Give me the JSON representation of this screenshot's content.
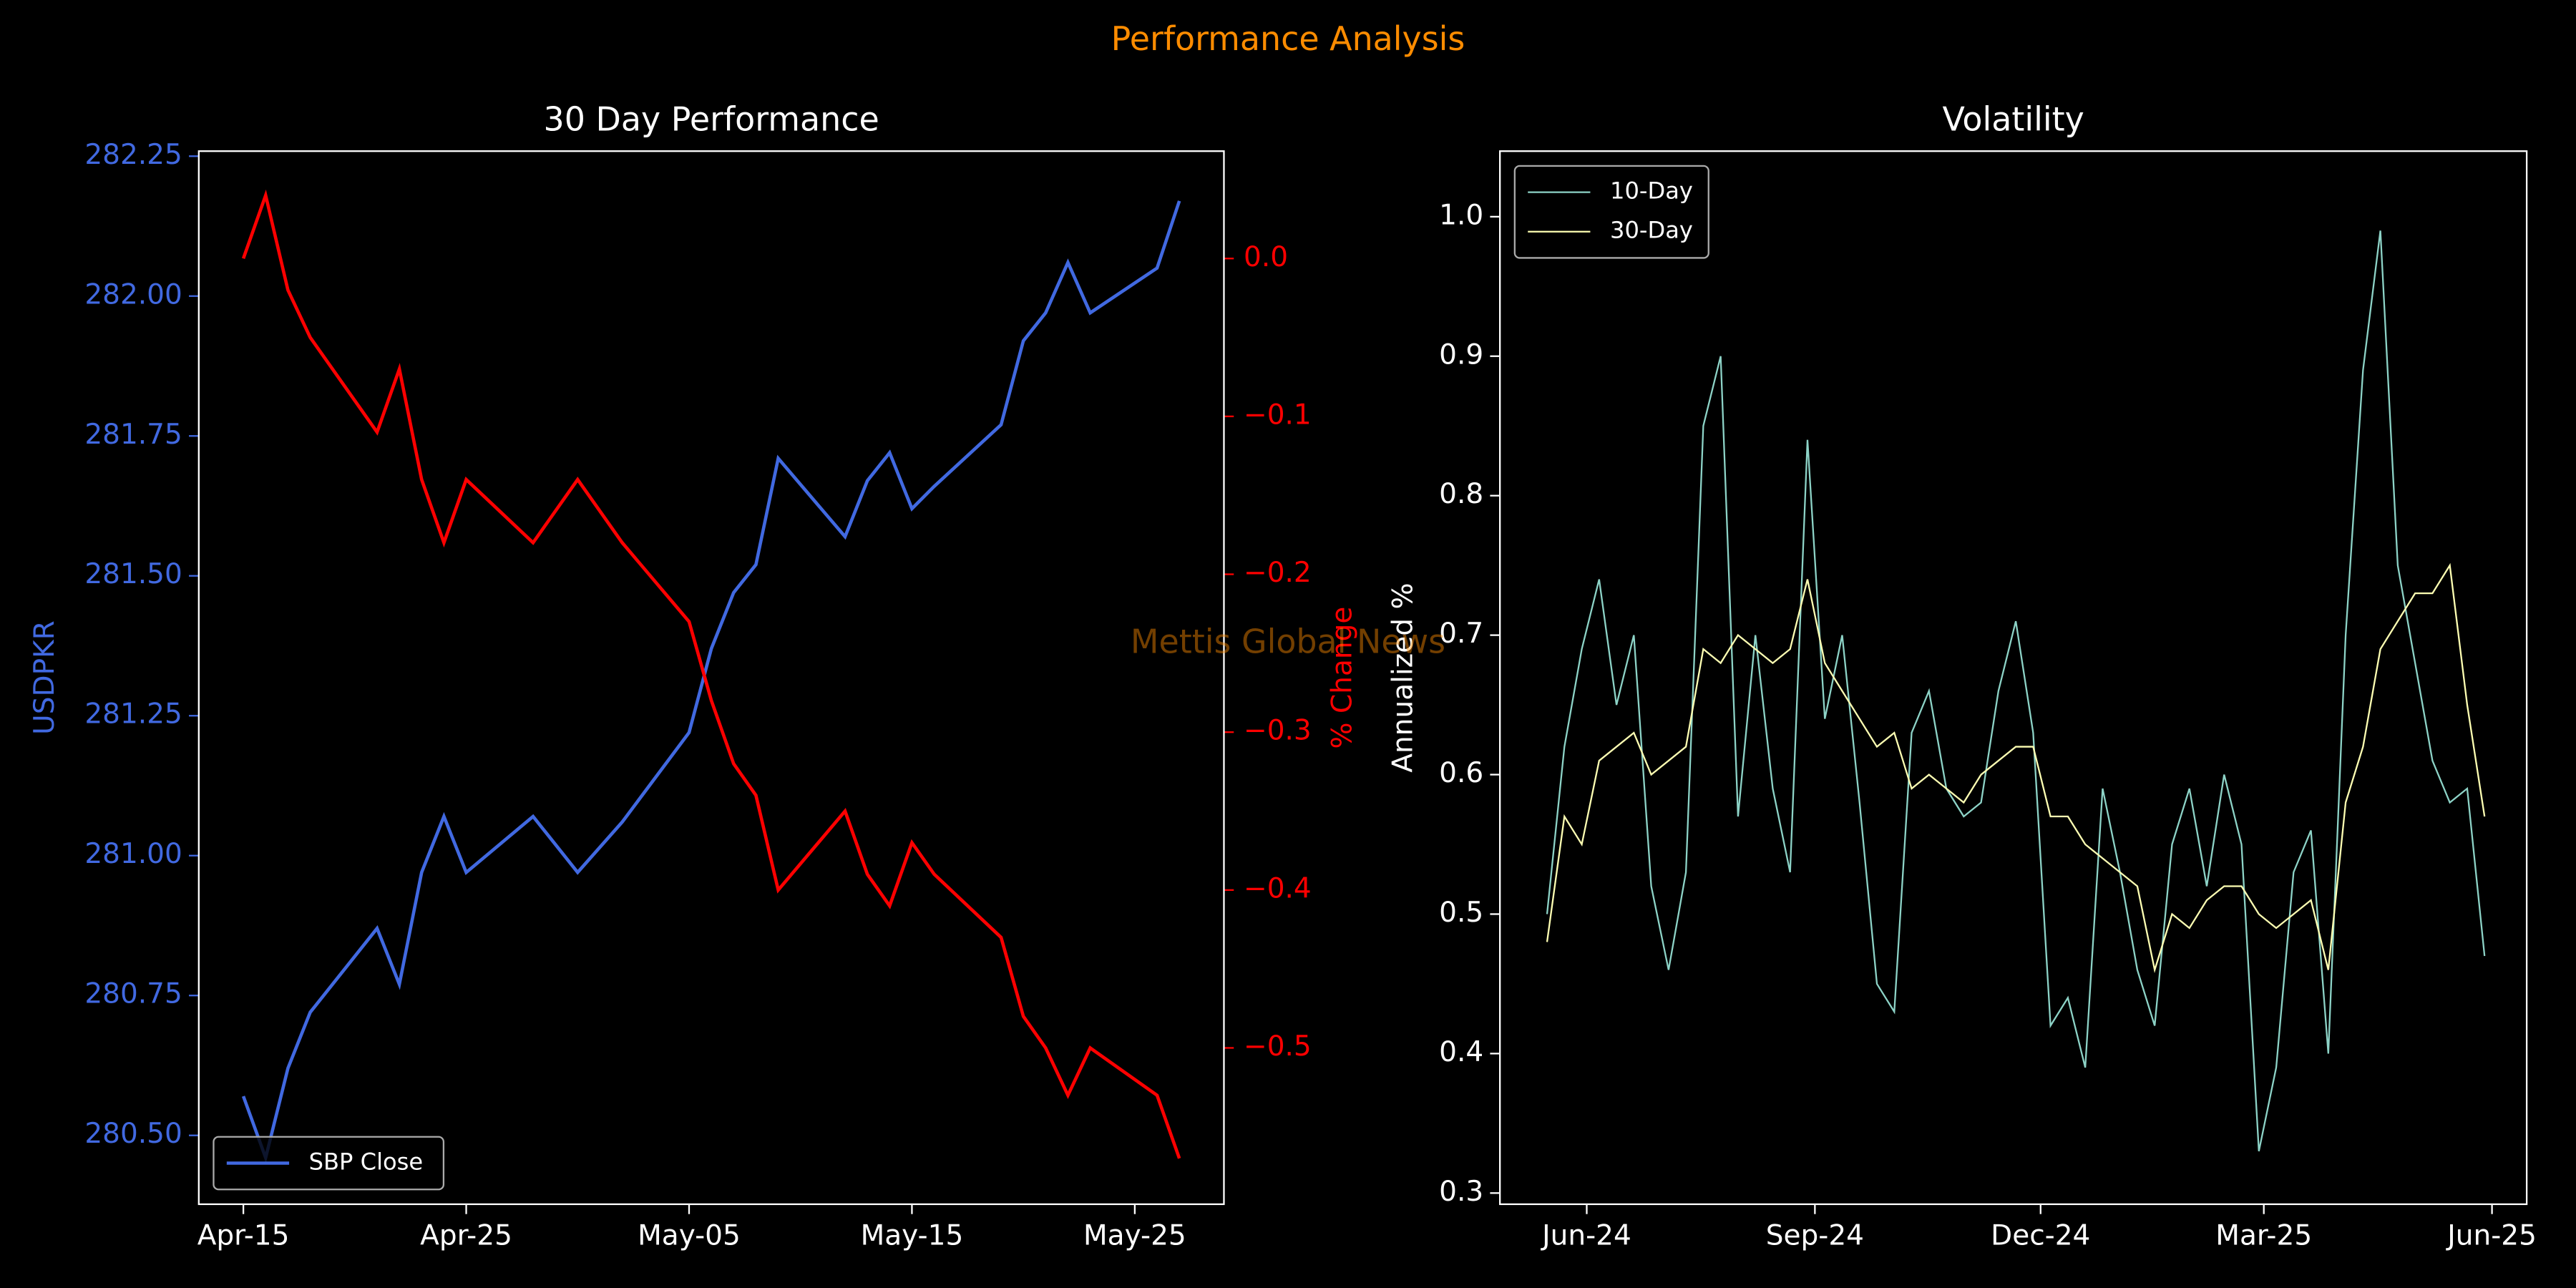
{
  "suptitle": "Performance Analysis",
  "watermark": "Mettis Global News",
  "chart_data": [
    {
      "type": "line",
      "title": "30 Day Performance",
      "ylabel": "USDPKR",
      "y2label": "% Change",
      "x": [
        "04-15",
        "04-16",
        "04-17",
        "04-18",
        "04-21",
        "04-22",
        "04-23",
        "04-24",
        "04-25",
        "04-28",
        "04-30",
        "05-02",
        "05-05",
        "05-06",
        "05-07",
        "05-08",
        "05-09",
        "05-12",
        "05-13",
        "05-14",
        "05-15",
        "05-16",
        "05-19",
        "05-20",
        "05-21",
        "05-22",
        "05-23",
        "05-26",
        "05-27"
      ],
      "series": [
        {
          "name": "SBP Close",
          "color": "#4169e1",
          "values": [
            280.57,
            280.46,
            280.62,
            280.72,
            280.87,
            280.77,
            280.97,
            281.07,
            280.97,
            281.07,
            280.97,
            281.06,
            281.22,
            281.37,
            281.47,
            281.52,
            281.71,
            281.57,
            281.67,
            281.72,
            281.62,
            281.66,
            281.77,
            281.92,
            281.97,
            282.06,
            281.97,
            282.05,
            282.17
          ]
        },
        {
          "color": "#ff0000",
          "axis": "y2",
          "values": [
            0.0,
            0.04,
            -0.02,
            -0.05,
            -0.11,
            -0.07,
            -0.14,
            -0.18,
            -0.14,
            -0.18,
            -0.14,
            -0.18,
            -0.23,
            -0.28,
            -0.32,
            -0.34,
            -0.4,
            -0.35,
            -0.39,
            -0.41,
            -0.37,
            -0.39,
            -0.43,
            -0.48,
            -0.5,
            -0.53,
            -0.5,
            -0.53,
            -0.57
          ]
        }
      ],
      "xlim": [
        "04-13",
        "05-29"
      ],
      "xticks": [
        {
          "value": "04-15",
          "label": "Apr-15"
        },
        {
          "value": "04-25",
          "label": "Apr-25"
        },
        {
          "value": "05-05",
          "label": "May-05"
        },
        {
          "value": "05-15",
          "label": "May-15"
        },
        {
          "value": "05-25",
          "label": "May-25"
        }
      ],
      "ylim": [
        280.377,
        282.259
      ],
      "yticks": [
        {
          "value": 280.5,
          "label": "280.50"
        },
        280.75,
        {
          "value": 281,
          "label": "281.00"
        },
        281.25,
        {
          "value": 281.5,
          "label": "281.50"
        },
        281.75,
        {
          "value": 282,
          "label": "282.00"
        },
        282.25
      ],
      "y2lim": [
        -0.599,
        0.068
      ],
      "y2ticks": [
        {
          "value": -0.5,
          "label": "−0.5"
        },
        {
          "value": -0.4,
          "label": "−0.4"
        },
        {
          "value": -0.3,
          "label": "−0.3"
        },
        {
          "value": -0.2,
          "label": "−0.2"
        },
        {
          "value": -0.1,
          "label": "−0.1"
        },
        {
          "value": 0,
          "label": "0.0"
        }
      ],
      "legend": "lower left"
    },
    {
      "type": "line",
      "title": "Volatility",
      "ylabel": "Annualized %",
      "x": [
        "2024-05-16",
        "2024-05-23",
        "2024-05-30",
        "2024-06-06",
        "2024-06-13",
        "2024-06-20",
        "2024-06-27",
        "2024-07-04",
        "2024-07-11",
        "2024-07-18",
        "2024-07-25",
        "2024-08-01",
        "2024-08-08",
        "2024-08-15",
        "2024-08-22",
        "2024-08-29",
        "2024-09-05",
        "2024-09-12",
        "2024-09-19",
        "2024-09-26",
        "2024-10-03",
        "2024-10-10",
        "2024-10-17",
        "2024-10-24",
        "2024-10-31",
        "2024-11-07",
        "2024-11-14",
        "2024-11-21",
        "2024-11-28",
        "2024-12-05",
        "2024-12-12",
        "2024-12-19",
        "2024-12-26",
        "2025-01-02",
        "2025-01-09",
        "2025-01-16",
        "2025-01-23",
        "2025-01-30",
        "2025-02-06",
        "2025-02-13",
        "2025-02-20",
        "2025-02-27",
        "2025-03-06",
        "2025-03-13",
        "2025-03-20",
        "2025-03-27",
        "2025-04-03",
        "2025-04-10",
        "2025-04-17",
        "2025-04-24",
        "2025-05-01",
        "2025-05-08",
        "2025-05-15",
        "2025-05-22",
        "2025-05-29"
      ],
      "series": [
        {
          "name": "10-Day",
          "color": "#8dd3c7",
          "values": [
            0.5,
            0.62,
            0.69,
            0.74,
            0.65,
            0.7,
            0.52,
            0.46,
            0.53,
            0.85,
            0.9,
            0.57,
            0.7,
            0.59,
            0.53,
            0.84,
            0.64,
            0.7,
            0.58,
            0.45,
            0.43,
            0.63,
            0.66,
            0.59,
            0.57,
            0.58,
            0.66,
            0.71,
            0.63,
            0.42,
            0.44,
            0.39,
            0.59,
            0.53,
            0.46,
            0.42,
            0.55,
            0.59,
            0.52,
            0.6,
            0.55,
            0.33,
            0.39,
            0.53,
            0.56,
            0.4,
            0.7,
            0.89,
            0.99,
            0.75,
            0.68,
            0.61,
            0.58,
            0.59,
            0.47
          ]
        },
        {
          "name": "30-Day",
          "color": "#feffb3",
          "values": [
            0.48,
            0.57,
            0.55,
            0.61,
            0.62,
            0.63,
            0.6,
            0.61,
            0.62,
            0.69,
            0.68,
            0.7,
            0.69,
            0.68,
            0.69,
            0.74,
            0.68,
            0.66,
            0.64,
            0.62,
            0.63,
            0.59,
            0.6,
            0.59,
            0.58,
            0.6,
            0.61,
            0.62,
            0.62,
            0.57,
            0.57,
            0.55,
            0.54,
            0.53,
            0.52,
            0.46,
            0.5,
            0.49,
            0.51,
            0.52,
            0.52,
            0.5,
            0.49,
            0.5,
            0.51,
            0.46,
            0.58,
            0.62,
            0.69,
            0.71,
            0.73,
            0.73,
            0.75,
            0.65,
            0.57
          ]
        }
      ],
      "xlim": [
        "2024-04-27",
        "2025-06-15"
      ],
      "xticks": [
        {
          "value": "2024-06-01",
          "label": "Jun-24"
        },
        {
          "value": "2024-09-01",
          "label": "Sep-24"
        },
        {
          "value": "2024-12-01",
          "label": "Dec-24"
        },
        {
          "value": "2025-03-01",
          "label": "Mar-25"
        },
        {
          "value": "2025-06-01",
          "label": "Jun-25"
        }
      ],
      "ylim": [
        0.292,
        1.047
      ],
      "yticks": [
        0.3,
        0.4,
        0.5,
        0.6,
        0.7,
        0.8,
        0.9,
        {
          "value": 1,
          "label": "1.0"
        }
      ],
      "legend": "upper left"
    }
  ]
}
